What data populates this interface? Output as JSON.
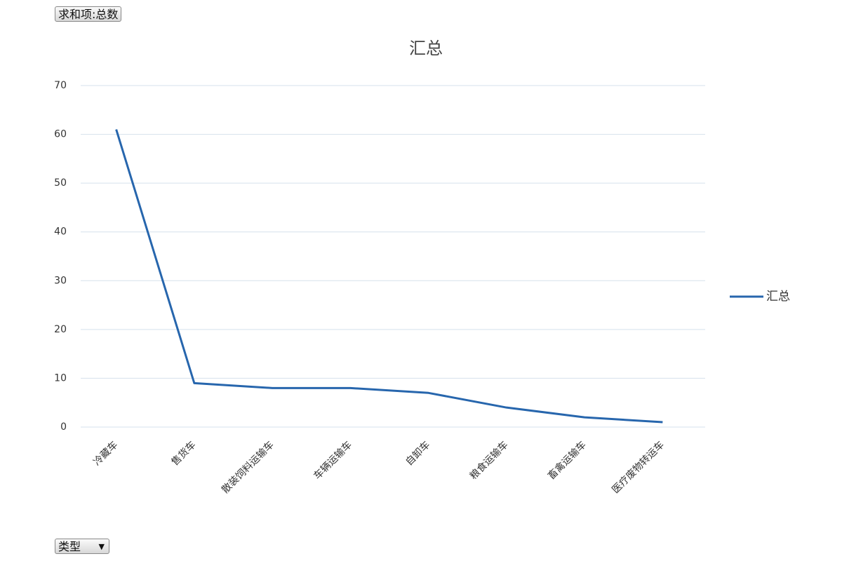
{
  "pivot_buttons": {
    "value_field": "求和项:总数",
    "axis_field": "类型"
  },
  "chart_data": {
    "type": "line",
    "title": "汇总",
    "categories": [
      "冷藏车",
      "售货车",
      "散装饲料运输车",
      "车辆运输车",
      "自卸车",
      "粮食运输车",
      "畜禽运输车",
      "医疗废物转运车"
    ],
    "series": [
      {
        "name": "汇总",
        "color": "#2766ad",
        "values": [
          61,
          9,
          8,
          8,
          7,
          4,
          2,
          1
        ]
      }
    ],
    "ylim": [
      0,
      70
    ],
    "yticks": [
      0,
      10,
      20,
      30,
      40,
      50,
      60,
      70
    ],
    "grid": true,
    "legend": "right"
  }
}
